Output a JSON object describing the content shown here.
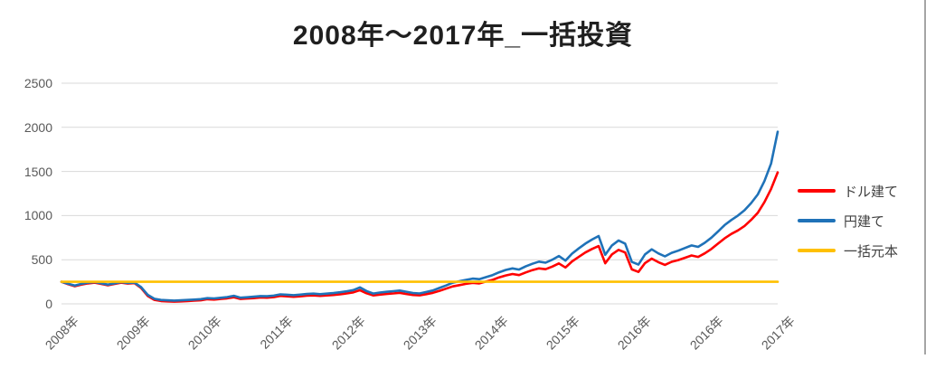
{
  "chart_data": {
    "type": "line",
    "title": "2008年～2017年_一括投資",
    "x_tick_labels": [
      "2008年",
      "2009年",
      "2010年",
      "2011年",
      "2012年",
      "2013年",
      "2014年",
      "2015年",
      "2016年",
      "2016年",
      "2017年"
    ],
    "y_ticks": [
      0,
      500,
      1000,
      1500,
      2000,
      2500
    ],
    "ylim": [
      0,
      2500
    ],
    "grid": true,
    "legend_position": "right",
    "gridline_color": "#d9d9d9",
    "series": [
      {
        "name": "ドル建て",
        "color": "#ff0000",
        "values": [
          250,
          222,
          200,
          218,
          232,
          240,
          225,
          210,
          225,
          240,
          230,
          235,
          180,
          90,
          45,
          32,
          28,
          25,
          28,
          32,
          36,
          40,
          52,
          48,
          55,
          62,
          75,
          55,
          60,
          65,
          72,
          70,
          76,
          90,
          85,
          80,
          85,
          92,
          95,
          90,
          95,
          100,
          108,
          118,
          130,
          155,
          120,
          95,
          105,
          112,
          118,
          125,
          112,
          100,
          96,
          110,
          125,
          148,
          172,
          198,
          212,
          226,
          238,
          232,
          252,
          272,
          300,
          322,
          338,
          326,
          356,
          382,
          402,
          392,
          422,
          458,
          412,
          482,
          532,
          582,
          622,
          655,
          460,
          560,
          612,
          582,
          390,
          362,
          462,
          512,
          472,
          442,
          476,
          496,
          522,
          548,
          532,
          572,
          622,
          682,
          742,
          792,
          832,
          882,
          952,
          1032,
          1152,
          1302,
          1490
        ]
      },
      {
        "name": "円建て",
        "color": "#1f72b8",
        "values": [
          250,
          228,
          208,
          226,
          240,
          247,
          232,
          218,
          232,
          246,
          237,
          241,
          190,
          102,
          57,
          44,
          40,
          37,
          40,
          44,
          48,
          53,
          65,
          61,
          69,
          77,
          91,
          70,
          75,
          81,
          88,
          86,
          93,
          108,
          103,
          98,
          104,
          112,
          116,
          110,
          116,
          122,
          131,
          142,
          156,
          186,
          146,
          117,
          128,
          136,
          143,
          151,
          137,
          123,
          118,
          134,
          152,
          180,
          208,
          240,
          256,
          272,
          286,
          280,
          302,
          326,
          358,
          384,
          402,
          388,
          424,
          454,
          478,
          466,
          500,
          542,
          490,
          570,
          628,
          682,
          728,
          768,
          555,
          662,
          718,
          682,
          475,
          445,
          560,
          618,
          572,
          538,
          578,
          602,
          632,
          662,
          645,
          692,
          750,
          820,
          892,
          950,
          1000,
          1060,
          1142,
          1240,
          1390,
          1590,
          1950
        ]
      },
      {
        "name": "一括元本",
        "color": "#ffc000",
        "constant": 250
      }
    ]
  }
}
